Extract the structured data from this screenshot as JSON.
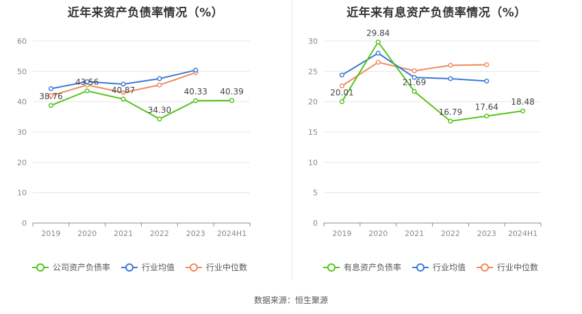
{
  "source_text": "数据来源：恒生聚源",
  "chart_data": [
    {
      "type": "line",
      "title": "近年来资产负债率情况（%）",
      "categories": [
        "2019",
        "2020",
        "2021",
        "2022",
        "2023",
        "2024H1"
      ],
      "ylim": [
        0,
        60
      ],
      "yticks": [
        0,
        10,
        20,
        30,
        40,
        50,
        60
      ],
      "grid": true,
      "legend_position": "bottom",
      "series": [
        {
          "name": "公司资产负债率",
          "color": "#52c41a",
          "values": [
            38.76,
            43.56,
            40.87,
            34.3,
            40.33,
            40.39
          ],
          "labels": [
            "38.76",
            "43.56",
            "40.87",
            "34.30",
            "40.33",
            "40.39"
          ]
        },
        {
          "name": "行业均值",
          "color": "#3a78d8",
          "values": [
            44.3,
            46.6,
            45.8,
            47.6,
            50.4,
            null
          ],
          "labels": []
        },
        {
          "name": "行业中位数",
          "color": "#f08a5d",
          "values": [
            42.0,
            45.5,
            43.0,
            45.5,
            49.6,
            null
          ],
          "labels": []
        }
      ]
    },
    {
      "type": "line",
      "title": "近年来有息资产负债率情况（%）",
      "categories": [
        "2019",
        "2020",
        "2021",
        "2022",
        "2023",
        "2024H1"
      ],
      "ylim": [
        0,
        30
      ],
      "yticks": [
        0,
        5,
        10,
        15,
        20,
        25,
        30
      ],
      "grid": true,
      "legend_position": "bottom",
      "series": [
        {
          "name": "有息资产负债率",
          "color": "#52c41a",
          "values": [
            20.01,
            29.84,
            21.69,
            16.79,
            17.64,
            18.48
          ],
          "labels": [
            "20.01",
            "29.84",
            "21.69",
            "16.79",
            "17.64",
            "18.48"
          ]
        },
        {
          "name": "行业均值",
          "color": "#3a78d8",
          "values": [
            24.4,
            28.0,
            24.0,
            23.8,
            23.4,
            null
          ],
          "labels": []
        },
        {
          "name": "行业中位数",
          "color": "#f08a5d",
          "values": [
            22.6,
            26.5,
            25.1,
            26.0,
            26.1,
            null
          ],
          "labels": []
        }
      ]
    }
  ]
}
